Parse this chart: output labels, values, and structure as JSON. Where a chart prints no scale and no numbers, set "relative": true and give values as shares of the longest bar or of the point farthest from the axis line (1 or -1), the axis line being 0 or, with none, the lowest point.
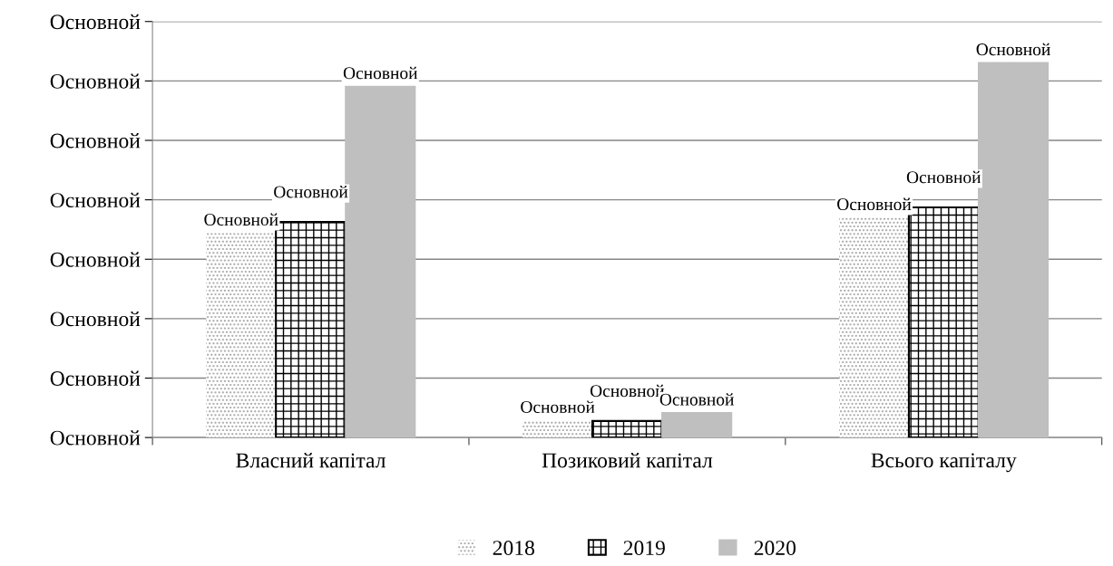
{
  "chart_data": {
    "type": "bar",
    "relative": true,
    "categories": [
      "Власний капітал",
      "Позиковий капітал",
      "Всього капіталу"
    ],
    "series": [
      {
        "name": "2018",
        "color": "#a6a6a6",
        "values": [
          0.546,
          0.046,
          0.587
        ]
      },
      {
        "name": "2019",
        "color": "#000000",
        "values": [
          0.575,
          0.044,
          0.614
        ]
      },
      {
        "name": "2020",
        "color": "#bfbfbf",
        "values": [
          0.937,
          0.066,
          1.0
        ]
      }
    ],
    "annotations": [
      "Основной",
      "Основной",
      "Основной",
      "Основной",
      "Основной",
      "Основной",
      "Основной",
      "Основной",
      "Основной",
      "Основной",
      "Основной",
      "Основной",
      "Основной",
      "Основной",
      "Основной",
      "Основной",
      "Основной"
    ],
    "grid": "y",
    "legend": "bottom"
  }
}
